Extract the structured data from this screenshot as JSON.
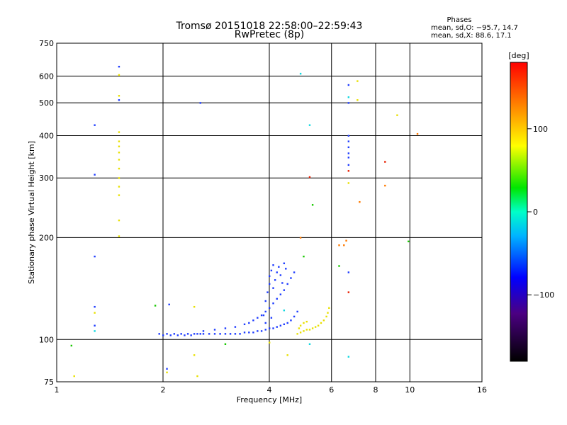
{
  "chart_data": {
    "type": "scatter",
    "title_line1": "Tromsø 20151018 22:58:00–22:59:43",
    "title_line2": "RwPretec (8p)",
    "phases": {
      "label": "Phases",
      "line_o": "mean, sd,O: −95.7, 14.7",
      "line_x": "mean, sd,X:  88.6, 17.1"
    },
    "xlabel": "Frequency [MHz]",
    "ylabel": "Stationary phase Virtual Height [km]",
    "x_scale": "log",
    "y_scale": "log",
    "xlim": [
      1,
      16
    ],
    "ylim": [
      75,
      750
    ],
    "x_ticks": [
      {
        "value": 1,
        "label": "1"
      },
      {
        "value": 2,
        "label": "2"
      },
      {
        "value": 4,
        "label": "4"
      },
      {
        "value": 6,
        "label": "6"
      },
      {
        "value": 8,
        "label": "8"
      },
      {
        "value": 10,
        "label": "10"
      },
      {
        "value": 16,
        "label": "16"
      }
    ],
    "y_ticks": [
      {
        "value": 75,
        "label": "75"
      },
      {
        "value": 100,
        "label": "100"
      },
      {
        "value": 200,
        "label": "200"
      },
      {
        "value": 300,
        "label": "300"
      },
      {
        "value": 400,
        "label": "400"
      },
      {
        "value": 500,
        "label": "500"
      },
      {
        "value": 600,
        "label": "600"
      },
      {
        "value": 750,
        "label": "750"
      }
    ],
    "grid": true,
    "colorbar": {
      "title": "[deg]",
      "range": [
        -180,
        180
      ],
      "ticks": [
        {
          "value": 100,
          "label": "100"
        },
        {
          "value": 0,
          "label": "0"
        },
        {
          "value": -100,
          "label": "−100"
        }
      ]
    },
    "series": [
      {
        "mode": "O",
        "color": "#1e3cff",
        "points": [
          [
            1.95,
            104
          ],
          [
            2.0,
            103
          ],
          [
            2.05,
            104
          ],
          [
            2.1,
            103
          ],
          [
            2.15,
            104
          ],
          [
            2.2,
            103
          ],
          [
            2.25,
            104
          ],
          [
            2.3,
            103
          ],
          [
            2.35,
            104
          ],
          [
            2.4,
            103
          ],
          [
            2.45,
            104
          ],
          [
            2.5,
            104
          ],
          [
            2.55,
            104
          ],
          [
            2.6,
            104
          ],
          [
            2.7,
            104
          ],
          [
            2.8,
            104
          ],
          [
            2.9,
            104
          ],
          [
            3.0,
            104
          ],
          [
            3.1,
            104
          ],
          [
            3.2,
            104
          ],
          [
            3.3,
            104
          ],
          [
            3.4,
            105
          ],
          [
            3.5,
            105
          ],
          [
            3.6,
            105
          ],
          [
            3.7,
            106
          ],
          [
            3.8,
            106
          ],
          [
            3.9,
            107
          ],
          [
            4.0,
            108
          ],
          [
            4.1,
            108
          ],
          [
            4.2,
            109
          ],
          [
            4.3,
            110
          ],
          [
            4.4,
            111
          ],
          [
            4.5,
            112
          ],
          [
            4.6,
            114
          ],
          [
            4.7,
            117
          ],
          [
            4.8,
            121
          ],
          [
            2.6,
            106
          ],
          [
            2.8,
            107
          ],
          [
            3.0,
            108
          ],
          [
            3.2,
            109
          ],
          [
            3.4,
            111
          ],
          [
            3.5,
            112
          ],
          [
            3.6,
            114
          ],
          [
            3.7,
            116
          ],
          [
            3.8,
            118
          ],
          [
            3.9,
            121
          ],
          [
            4.0,
            124
          ],
          [
            4.1,
            128
          ],
          [
            4.2,
            132
          ],
          [
            4.3,
            136
          ],
          [
            4.4,
            140
          ],
          [
            4.5,
            146
          ],
          [
            4.6,
            152
          ],
          [
            4.7,
            158
          ],
          [
            3.9,
            130
          ],
          [
            3.95,
            138
          ],
          [
            4.0,
            146
          ],
          [
            4.0,
            154
          ],
          [
            4.05,
            160
          ],
          [
            4.1,
            166
          ],
          [
            4.1,
            142
          ],
          [
            4.15,
            150
          ],
          [
            4.2,
            158
          ],
          [
            4.25,
            164
          ],
          [
            4.3,
            155
          ],
          [
            4.35,
            147
          ],
          [
            4.4,
            168
          ],
          [
            4.45,
            162
          ],
          [
            3.85,
            118
          ],
          [
            3.9,
            112
          ],
          [
            4.05,
            116
          ],
          [
            1.28,
            430
          ],
          [
            1.28,
            176
          ],
          [
            1.28,
            125
          ],
          [
            1.28,
            110
          ],
          [
            1.28,
            307
          ],
          [
            1.5,
            640
          ],
          [
            1.5,
            510
          ],
          [
            2.05,
            82
          ],
          [
            2.08,
            127
          ],
          [
            2.55,
            500
          ],
          [
            6.7,
            565
          ],
          [
            6.7,
            500
          ],
          [
            6.7,
            400
          ],
          [
            6.7,
            385
          ],
          [
            6.7,
            370
          ],
          [
            6.7,
            355
          ],
          [
            6.7,
            345
          ],
          [
            6.7,
            328
          ],
          [
            6.7,
            158
          ]
        ]
      },
      {
        "mode": "X",
        "color": "#e8e000",
        "points": [
          [
            4.8,
            104
          ],
          [
            4.9,
            105
          ],
          [
            5.0,
            106
          ],
          [
            5.1,
            107
          ],
          [
            5.2,
            107
          ],
          [
            5.3,
            108
          ],
          [
            5.4,
            109
          ],
          [
            5.5,
            110
          ],
          [
            5.6,
            112
          ],
          [
            5.7,
            114
          ],
          [
            5.8,
            117
          ],
          [
            5.85,
            120
          ],
          [
            5.9,
            124
          ],
          [
            4.9,
            110
          ],
          [
            5.0,
            112
          ],
          [
            5.1,
            113
          ],
          [
            4.85,
            108
          ],
          [
            1.5,
            605
          ],
          [
            1.5,
            525
          ],
          [
            1.5,
            410
          ],
          [
            1.5,
            385
          ],
          [
            1.5,
            372
          ],
          [
            1.5,
            357
          ],
          [
            1.5,
            340
          ],
          [
            1.5,
            320
          ],
          [
            1.5,
            300
          ],
          [
            1.5,
            283
          ],
          [
            1.5,
            267
          ],
          [
            1.5,
            225
          ],
          [
            1.5,
            202
          ],
          [
            1.28,
            120
          ],
          [
            1.12,
            78
          ],
          [
            2.05,
            80
          ],
          [
            2.45,
            90
          ],
          [
            2.45,
            125
          ],
          [
            2.5,
            78
          ],
          [
            4.5,
            90
          ],
          [
            6.7,
            290
          ],
          [
            7.1,
            580
          ],
          [
            7.1,
            510
          ],
          [
            9.2,
            460
          ],
          [
            4.0,
            98
          ]
        ]
      },
      {
        "mode": "other",
        "color": "#10d8e0",
        "points": [
          [
            4.9,
            610
          ],
          [
            5.2,
            430
          ],
          [
            6.7,
            520
          ],
          [
            6.7,
            89
          ],
          [
            1.28,
            106
          ],
          [
            5.2,
            97
          ],
          [
            4.4,
            122
          ]
        ]
      },
      {
        "mode": "other",
        "color": "#19c800",
        "points": [
          [
            1.1,
            96
          ],
          [
            1.9,
            126
          ],
          [
            5.3,
            250
          ],
          [
            6.3,
            165
          ],
          [
            3.0,
            97
          ],
          [
            9.9,
            195
          ],
          [
            5.0,
            176
          ]
        ]
      },
      {
        "mode": "other",
        "color": "#ff7a00",
        "points": [
          [
            6.3,
            190
          ],
          [
            6.5,
            190
          ],
          [
            6.6,
            196
          ],
          [
            7.2,
            255
          ],
          [
            10.5,
            405
          ],
          [
            8.5,
            285
          ],
          [
            4.9,
            200
          ]
        ]
      },
      {
        "mode": "other",
        "color": "#e81e00",
        "points": [
          [
            5.2,
            302
          ],
          [
            6.7,
            315
          ],
          [
            6.7,
            138
          ],
          [
            8.5,
            335
          ]
        ]
      }
    ]
  }
}
